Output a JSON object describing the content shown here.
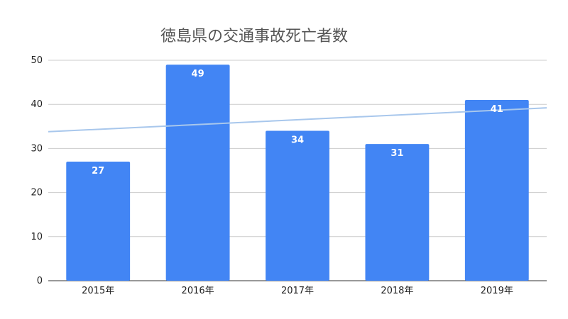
{
  "chart_data": {
    "type": "bar",
    "title": "徳島県の交通事故死亡者数",
    "xlabel": "",
    "ylabel": "",
    "categories": [
      "2015年",
      "2016年",
      "2017年",
      "2018年",
      "2019年"
    ],
    "series": [
      {
        "values": [
          27,
          49,
          34,
          31,
          41
        ],
        "color": "#4285f4"
      }
    ],
    "data_labels": [
      "27",
      "49",
      "34",
      "31",
      "41"
    ],
    "ylim": [
      0,
      50
    ],
    "yticks": [
      "0",
      "10",
      "20",
      "30",
      "40",
      "50"
    ],
    "grid": true,
    "legend": "none",
    "trendline": {
      "type": "linear",
      "color": "#a8c7ec",
      "y_start": 33.8,
      "y_end": 39.2
    }
  }
}
